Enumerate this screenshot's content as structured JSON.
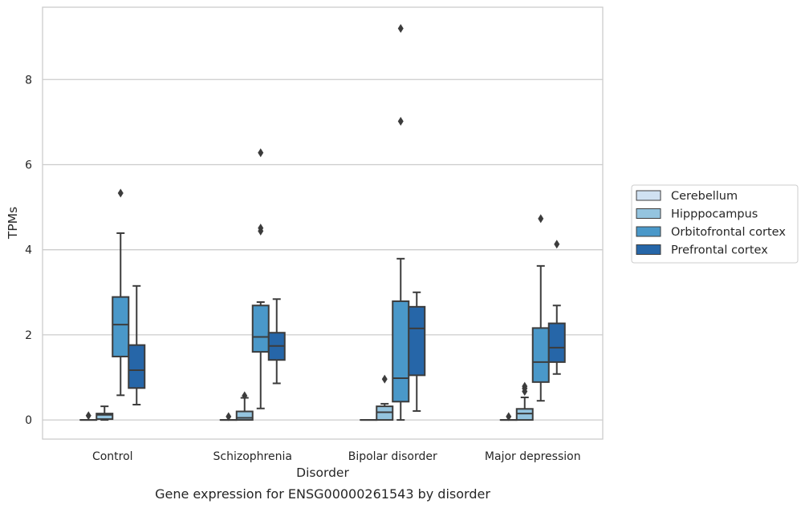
{
  "chart_data": {
    "type": "box",
    "title": "",
    "caption": "Gene expression for ENSG00000261543 by disorder",
    "xlabel": "Disorder",
    "ylabel": "TPMs",
    "ylim": [
      -0.45,
      9.7
    ],
    "yticks": [
      "0",
      "2",
      "4",
      "6",
      "8"
    ],
    "grid": "horizontal",
    "legend_position": "right",
    "categories": [
      "Control",
      "Schizophrenia",
      "Bipolar disorder",
      "Major depression"
    ],
    "series": [
      {
        "name": "Cerebellum",
        "color": "#d0e1f2",
        "boxes": [
          {
            "whislo": 0,
            "q1": 0,
            "med": 0,
            "q3": 0,
            "whishi": 0,
            "fliers": [
              0.1
            ]
          },
          {
            "whislo": 0,
            "q1": 0,
            "med": 0,
            "q3": 0,
            "whishi": 0,
            "fliers": [
              0.08
            ]
          },
          {
            "whislo": 0,
            "q1": 0,
            "med": 0,
            "q3": 0,
            "whishi": 0,
            "fliers": []
          },
          {
            "whislo": 0,
            "q1": 0,
            "med": 0,
            "q3": 0,
            "whishi": 0,
            "fliers": [
              0.08
            ]
          }
        ]
      },
      {
        "name": "Hipppocampus",
        "color": "#94c4df",
        "boxes": [
          {
            "whislo": 0,
            "q1": 0.02,
            "med": 0.12,
            "q3": 0.15,
            "whishi": 0.32,
            "fliers": []
          },
          {
            "whislo": 0,
            "q1": 0.0,
            "med": 0.05,
            "q3": 0.2,
            "whishi": 0.52,
            "fliers": [
              0.57
            ]
          },
          {
            "whislo": 0,
            "q1": 0.0,
            "med": 0.18,
            "q3": 0.32,
            "whishi": 0.38,
            "fliers": [
              0.96
            ]
          },
          {
            "whislo": 0,
            "q1": 0.0,
            "med": 0.15,
            "q3": 0.26,
            "whishi": 0.53,
            "fliers": [
              0.67,
              0.74,
              0.79
            ]
          }
        ]
      },
      {
        "name": "Orbitofrontal cortex",
        "color": "#4a98c9",
        "boxes": [
          {
            "whislo": 0.58,
            "q1": 1.49,
            "med": 2.24,
            "q3": 2.89,
            "whishi": 4.39,
            "fliers": [
              5.33
            ]
          },
          {
            "whislo": 0.27,
            "q1": 1.6,
            "med": 1.95,
            "q3": 2.69,
            "whishi": 2.77,
            "fliers": [
              4.44,
              4.51,
              6.28
            ]
          },
          {
            "whislo": 0.0,
            "q1": 0.43,
            "med": 0.98,
            "q3": 2.79,
            "whishi": 3.79,
            "fliers": [
              7.02,
              9.2
            ]
          },
          {
            "whislo": 0.45,
            "q1": 0.89,
            "med": 1.36,
            "q3": 2.16,
            "whishi": 3.62,
            "fliers": [
              4.73
            ]
          }
        ]
      },
      {
        "name": "Prefrontal cortex",
        "color": "#2666a8",
        "boxes": [
          {
            "whislo": 0.36,
            "q1": 0.75,
            "med": 1.17,
            "q3": 1.76,
            "whishi": 3.15,
            "fliers": []
          },
          {
            "whislo": 0.86,
            "q1": 1.41,
            "med": 1.74,
            "q3": 2.05,
            "whishi": 2.84,
            "fliers": []
          },
          {
            "whislo": 0.21,
            "q1": 1.05,
            "med": 2.15,
            "q3": 2.66,
            "whishi": 3.0,
            "fliers": []
          },
          {
            "whislo": 1.08,
            "q1": 1.36,
            "med": 1.7,
            "q3": 2.27,
            "whishi": 2.69,
            "fliers": [
              4.13
            ]
          }
        ]
      }
    ]
  }
}
